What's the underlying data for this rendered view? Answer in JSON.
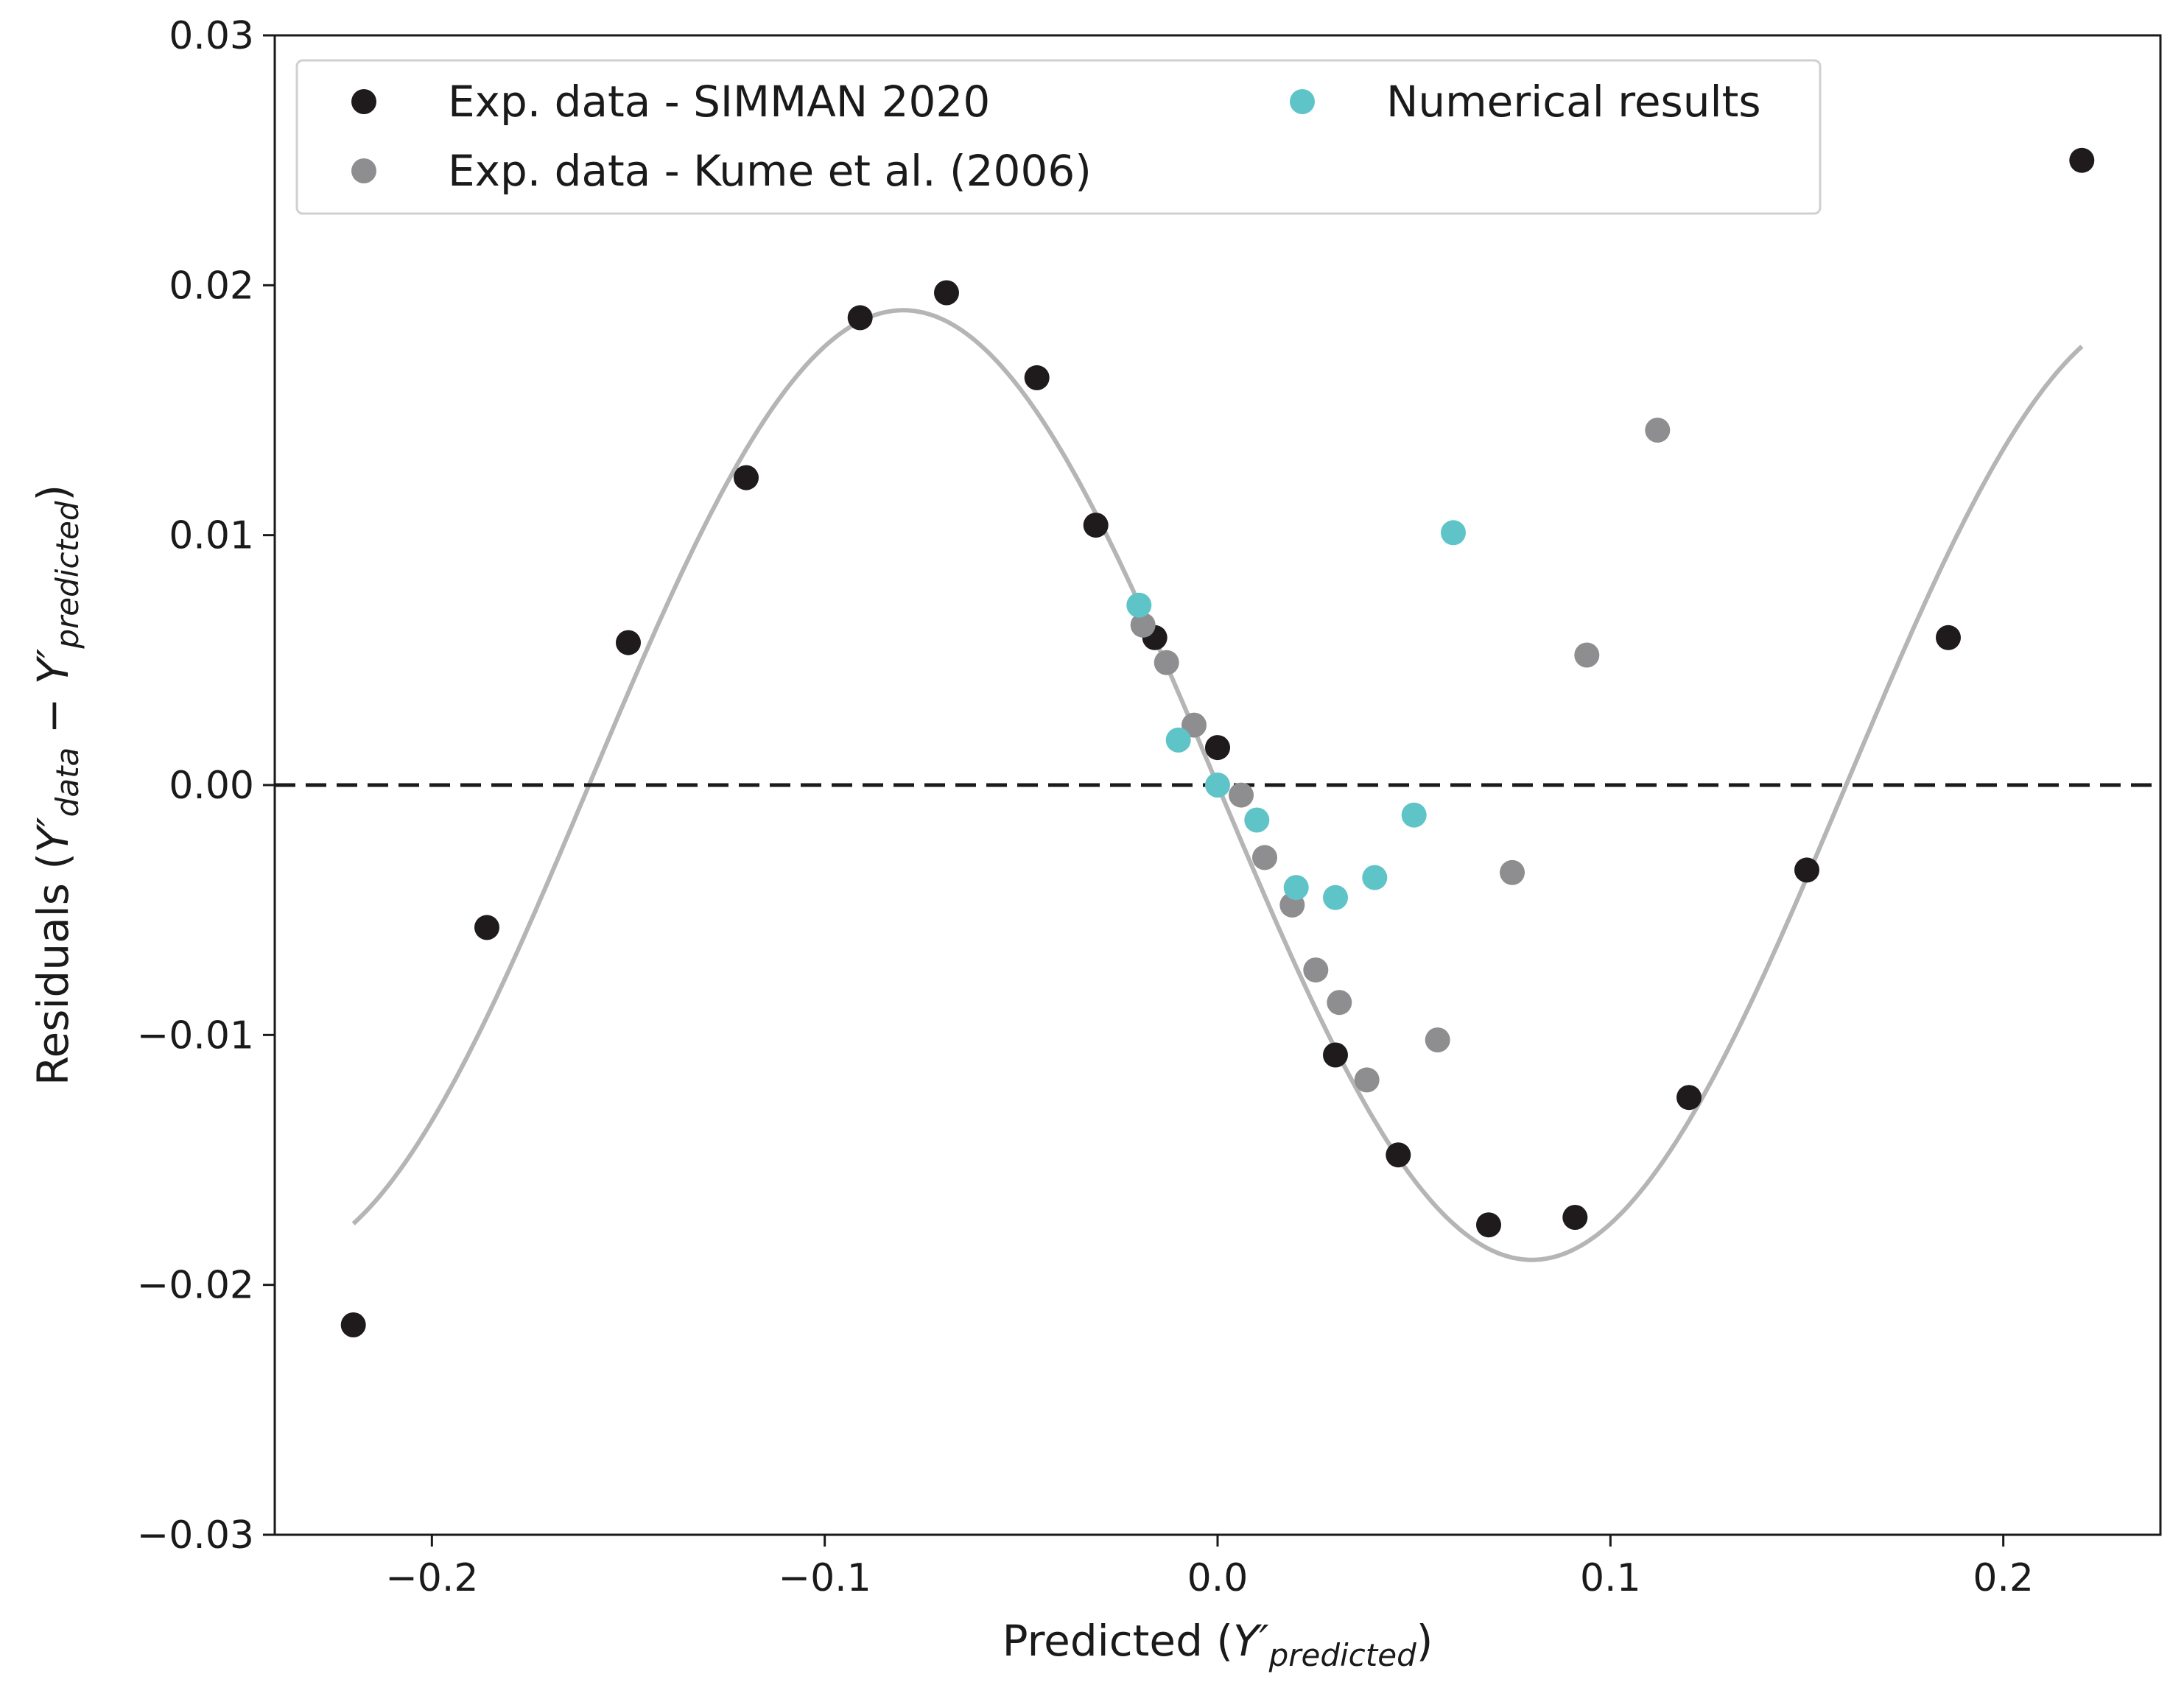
{
  "chart_data": {
    "type": "scatter",
    "xlabel": {
      "main": "Predicted (",
      "sym": "Y′",
      "sub": "predicted",
      "close": ")"
    },
    "ylabel": {
      "main": "Residuals  (",
      "sym1": "Y′",
      "sub1": "data",
      "minus": " − ",
      "sym2": "Y′",
      "sub2": "predicted",
      "close": ")"
    },
    "xlim": [
      -0.24,
      0.24
    ],
    "ylim": [
      -0.03,
      0.03
    ],
    "xticks": [
      -0.2,
      -0.1,
      0.0,
      0.1,
      0.2
    ],
    "xtick_labels": [
      "−0.2",
      "−0.1",
      "0.0",
      "0.1",
      "0.2"
    ],
    "yticks": [
      -0.03,
      -0.02,
      -0.01,
      0.0,
      0.01,
      0.02,
      0.03
    ],
    "ytick_labels": [
      "−0.03",
      "−0.02",
      "−0.01",
      "0.00",
      "0.01",
      "0.02",
      "0.03"
    ],
    "grid": false,
    "legend_position": "top-left",
    "series": [
      {
        "name": "Exp. data - SIMMAN 2020",
        "color": "#1f1a1c",
        "points": [
          [
            -0.22,
            -0.0216
          ],
          [
            -0.186,
            -0.0057
          ],
          [
            -0.15,
            0.0057
          ],
          [
            -0.12,
            0.0123
          ],
          [
            -0.091,
            0.0187
          ],
          [
            -0.069,
            0.0197
          ],
          [
            -0.046,
            0.0163
          ],
          [
            -0.031,
            0.0104
          ],
          [
            -0.016,
            0.0059
          ],
          [
            0.0,
            0.0015
          ],
          [
            0.03,
            -0.0108
          ],
          [
            0.046,
            -0.0148
          ],
          [
            0.069,
            -0.0176
          ],
          [
            0.091,
            -0.0173
          ],
          [
            0.12,
            -0.0125
          ],
          [
            0.15,
            -0.0034
          ],
          [
            0.186,
            0.0059
          ],
          [
            0.22,
            0.025
          ]
        ]
      },
      {
        "name": "Exp. data - Kume et al. (2006)",
        "color": "#8e8e90",
        "points": [
          [
            -0.019,
            0.0064
          ],
          [
            -0.013,
            0.0049
          ],
          [
            -0.006,
            0.0024
          ],
          [
            0.006,
            -0.0004
          ],
          [
            0.012,
            -0.0029
          ],
          [
            0.019,
            -0.0048
          ],
          [
            0.025,
            -0.0074
          ],
          [
            0.031,
            -0.0087
          ],
          [
            0.038,
            -0.0118
          ],
          [
            0.056,
            -0.0102
          ],
          [
            0.075,
            -0.0035
          ],
          [
            0.094,
            0.0052
          ],
          [
            0.112,
            0.0142
          ]
        ]
      },
      {
        "name": "Numerical results",
        "color": "#5ec4c8",
        "points": [
          [
            -0.02,
            0.0072
          ],
          [
            -0.01,
            0.0018
          ],
          [
            0.0,
            0.0
          ],
          [
            0.01,
            -0.0014
          ],
          [
            0.02,
            -0.0041
          ],
          [
            0.03,
            -0.0045
          ],
          [
            0.04,
            -0.0037
          ],
          [
            0.05,
            -0.0012
          ],
          [
            0.06,
            0.0101
          ]
        ]
      }
    ],
    "fit_curve": {
      "color": "#b5b5b5",
      "form": "A*sin(-2*pi*x/P)",
      "A": 0.019,
      "P": 0.32,
      "x_range": [
        -0.22,
        0.22
      ]
    },
    "reference_line": {
      "y": 0.0,
      "style": "dashed",
      "color": "#1a1a1a"
    }
  }
}
